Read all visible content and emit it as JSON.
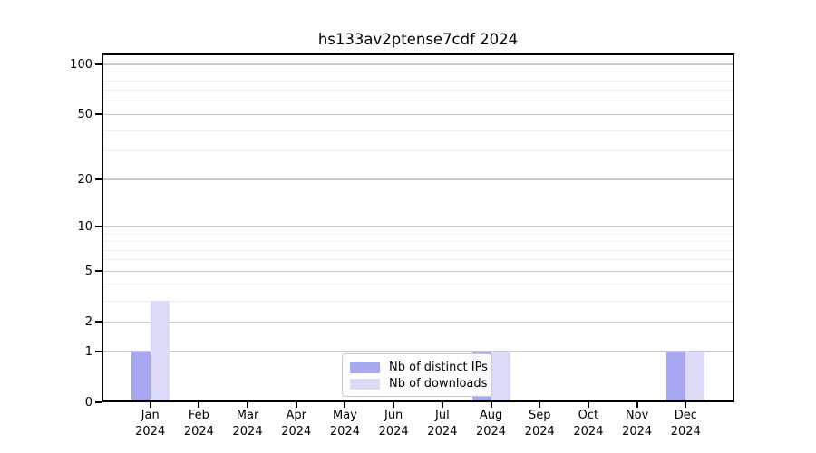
{
  "title": "hs133av2ptense7cdf 2024",
  "colors": {
    "distinct_ips": "#a8a8f2",
    "downloads": "#dbdbf8",
    "grid_major": "#c9c9c9",
    "grid_minor": "#ededed",
    "spine": "#000000",
    "legend_border": "#c9c9c9",
    "background": "#ffffff"
  },
  "legend": {
    "items": [
      {
        "label": "Nb of distinct IPs",
        "color": "#a8a8f2"
      },
      {
        "label": "Nb of downloads",
        "color": "#dbdbf8"
      }
    ]
  },
  "y_axis": {
    "tick_labels": [
      "0",
      "1",
      "2",
      "5",
      "10",
      "20",
      "50",
      "100"
    ],
    "tick_values": [
      0,
      1,
      2,
      5,
      10,
      20,
      50,
      100
    ],
    "minor_values": [
      3,
      4,
      6,
      7,
      8,
      9,
      30,
      40,
      60,
      70,
      80,
      90
    ]
  },
  "chart_data": {
    "type": "bar",
    "title": "hs133av2ptense7cdf 2024",
    "categories": [
      "Jan 2024",
      "Feb 2024",
      "Mar 2024",
      "Apr 2024",
      "May 2024",
      "Jun 2024",
      "Jul 2024",
      "Aug 2024",
      "Sep 2024",
      "Oct 2024",
      "Nov 2024",
      "Dec 2024"
    ],
    "series": [
      {
        "name": "Nb of distinct IPs",
        "color": "#a8a8f2",
        "values": [
          1,
          0,
          0,
          0,
          0,
          0,
          0,
          1,
          0,
          0,
          0,
          1
        ]
      },
      {
        "name": "Nb of downloads",
        "color": "#dbdbf8",
        "values": [
          3,
          0,
          0,
          0,
          0,
          0,
          0,
          1,
          0,
          0,
          0,
          1
        ]
      }
    ],
    "xlabel": "",
    "ylabel": "",
    "yscale": "log1p",
    "yticks": [
      0,
      1,
      2,
      5,
      10,
      20,
      50,
      100
    ],
    "ylim": [
      0,
      117
    ],
    "grid": true,
    "legend_position": "lower center"
  }
}
